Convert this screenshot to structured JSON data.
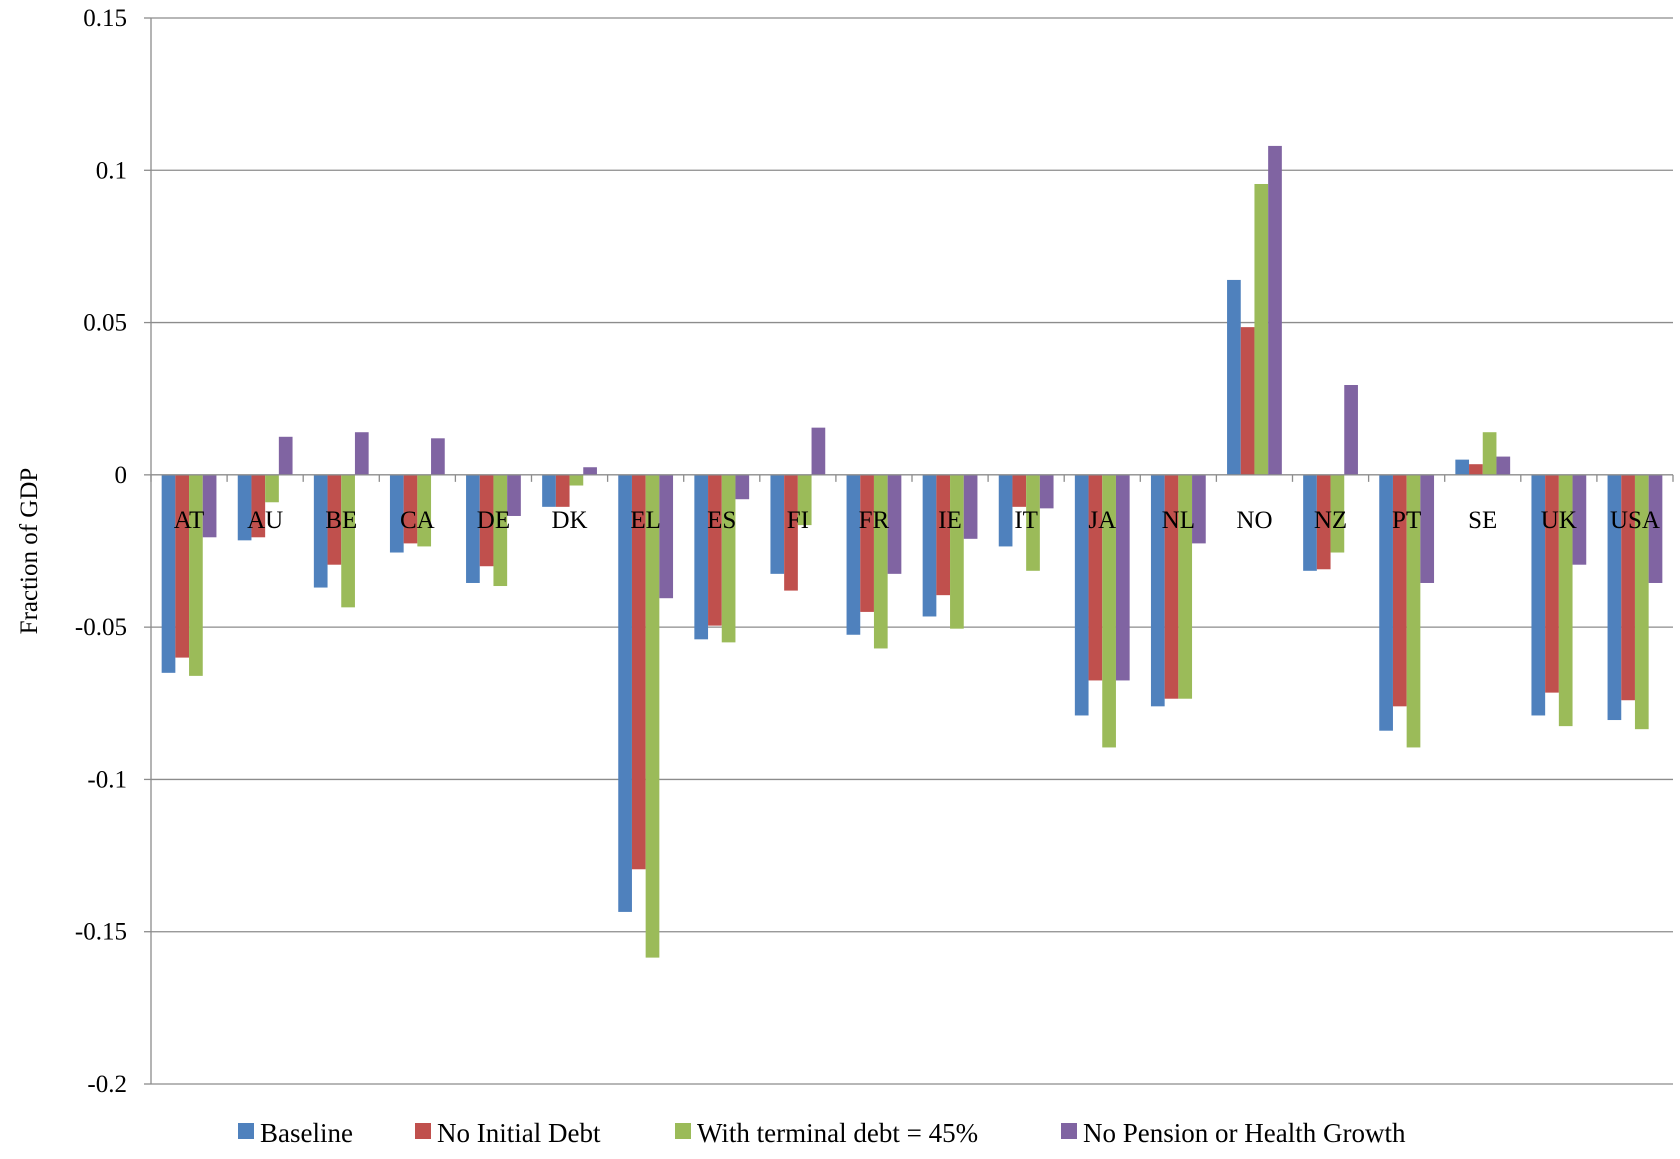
{
  "chart_data": {
    "type": "bar",
    "title": "",
    "xlabel": "",
    "ylabel": "Fraction of GDP",
    "ylim": [
      -0.2,
      0.15
    ],
    "yticks": [
      0.15,
      0.1,
      0.05,
      0,
      -0.05,
      -0.1,
      -0.15,
      -0.2
    ],
    "ytick_labels": [
      "0.15",
      "0.1",
      "0.05",
      "0",
      "-0.05",
      "-0.1",
      "-0.15",
      "-0.2"
    ],
    "grid": true,
    "legend_position": "bottom",
    "categories": [
      "AT",
      "AU",
      "BE",
      "CA",
      "DE",
      "DK",
      "EL",
      "ES",
      "FI",
      "FR",
      "IE",
      "IT",
      "JA",
      "NL",
      "NO",
      "NZ",
      "PT",
      "SE",
      "UK",
      "USA"
    ],
    "series": [
      {
        "name": "Baseline",
        "color": "#4F81BD",
        "values": [
          -0.065,
          -0.0215,
          -0.037,
          -0.0255,
          -0.0355,
          -0.0105,
          -0.1435,
          -0.054,
          -0.0325,
          -0.0525,
          -0.0465,
          -0.0235,
          -0.079,
          -0.076,
          0.064,
          -0.0315,
          -0.084,
          0.005,
          -0.079,
          -0.0805
        ]
      },
      {
        "name": "No Initial Debt",
        "color": "#C0504D",
        "values": [
          -0.06,
          -0.0205,
          -0.0295,
          -0.0225,
          -0.03,
          -0.0105,
          -0.1295,
          -0.0495,
          -0.038,
          -0.045,
          -0.0395,
          -0.0105,
          -0.0675,
          -0.0735,
          0.0485,
          -0.031,
          -0.076,
          0.0035,
          -0.0715,
          -0.074
        ]
      },
      {
        "name": "With terminal debt = 45%",
        "color": "#9BBB59",
        "values": [
          -0.066,
          -0.009,
          -0.0435,
          -0.0235,
          -0.0365,
          -0.0035,
          -0.1585,
          -0.055,
          -0.0165,
          -0.057,
          -0.0505,
          -0.0315,
          -0.0895,
          -0.0735,
          0.0955,
          -0.0255,
          -0.0895,
          0.014,
          -0.0825,
          -0.0835
        ]
      },
      {
        "name": "No Pension or Health Growth",
        "color": "#8064A2",
        "values": [
          -0.0205,
          0.0125,
          0.014,
          0.012,
          -0.0135,
          0.0025,
          -0.0405,
          -0.008,
          0.0155,
          -0.0325,
          -0.021,
          -0.011,
          -0.0675,
          -0.0225,
          0.108,
          0.0295,
          -0.0355,
          0.006,
          -0.0295,
          -0.0355
        ]
      }
    ]
  }
}
